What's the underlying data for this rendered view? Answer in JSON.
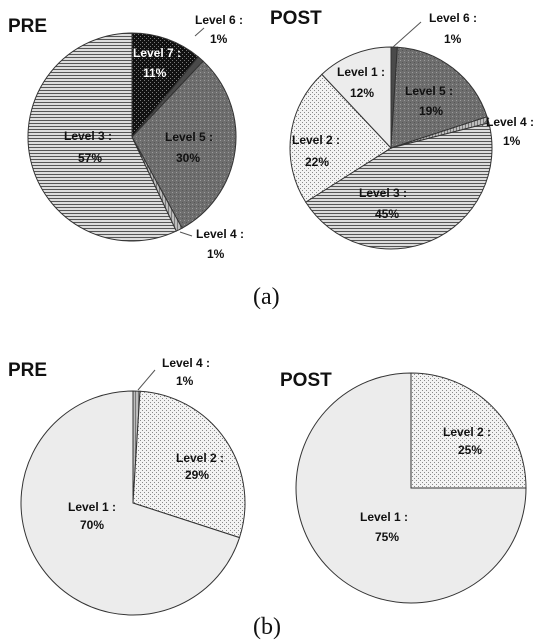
{
  "captions": {
    "a": "(a)",
    "b": "(b)"
  },
  "chart_data": [
    {
      "type": "pie",
      "title": "PRE",
      "slices": [
        {
          "label": "Level 7 :",
          "value": 11,
          "text": "11%"
        },
        {
          "label": "Level 6 :",
          "value": 1,
          "text": "1%"
        },
        {
          "label": "Level 5 :",
          "value": 30,
          "text": "30%"
        },
        {
          "label": "Level 4 :",
          "value": 1,
          "text": "1%"
        },
        {
          "label": "Level 3 :",
          "value": 57,
          "text": "57%"
        }
      ]
    },
    {
      "type": "pie",
      "title": "POST",
      "slices": [
        {
          "label": "Level 6 :",
          "value": 1,
          "text": "1%"
        },
        {
          "label": "Level 5 :",
          "value": 19,
          "text": "19%"
        },
        {
          "label": "Level 4 :",
          "value": 1,
          "text": "1%"
        },
        {
          "label": "Level 3 :",
          "value": 45,
          "text": "45%"
        },
        {
          "label": "Level 2 :",
          "value": 22,
          "text": "22%"
        },
        {
          "label": "Level 1 :",
          "value": 12,
          "text": "12%"
        }
      ]
    },
    {
      "type": "pie",
      "title": "PRE",
      "slices": [
        {
          "label": "Level 4 :",
          "value": 1,
          "text": "1%"
        },
        {
          "label": "Level 2 :",
          "value": 29,
          "text": "29%"
        },
        {
          "label": "Level 1 :",
          "value": 70,
          "text": "70%"
        }
      ]
    },
    {
      "type": "pie",
      "title": "POST",
      "slices": [
        {
          "label": "Level 2 :",
          "value": 25,
          "text": "25%"
        },
        {
          "label": "Level 1 :",
          "value": 75,
          "text": "75%"
        }
      ]
    }
  ]
}
